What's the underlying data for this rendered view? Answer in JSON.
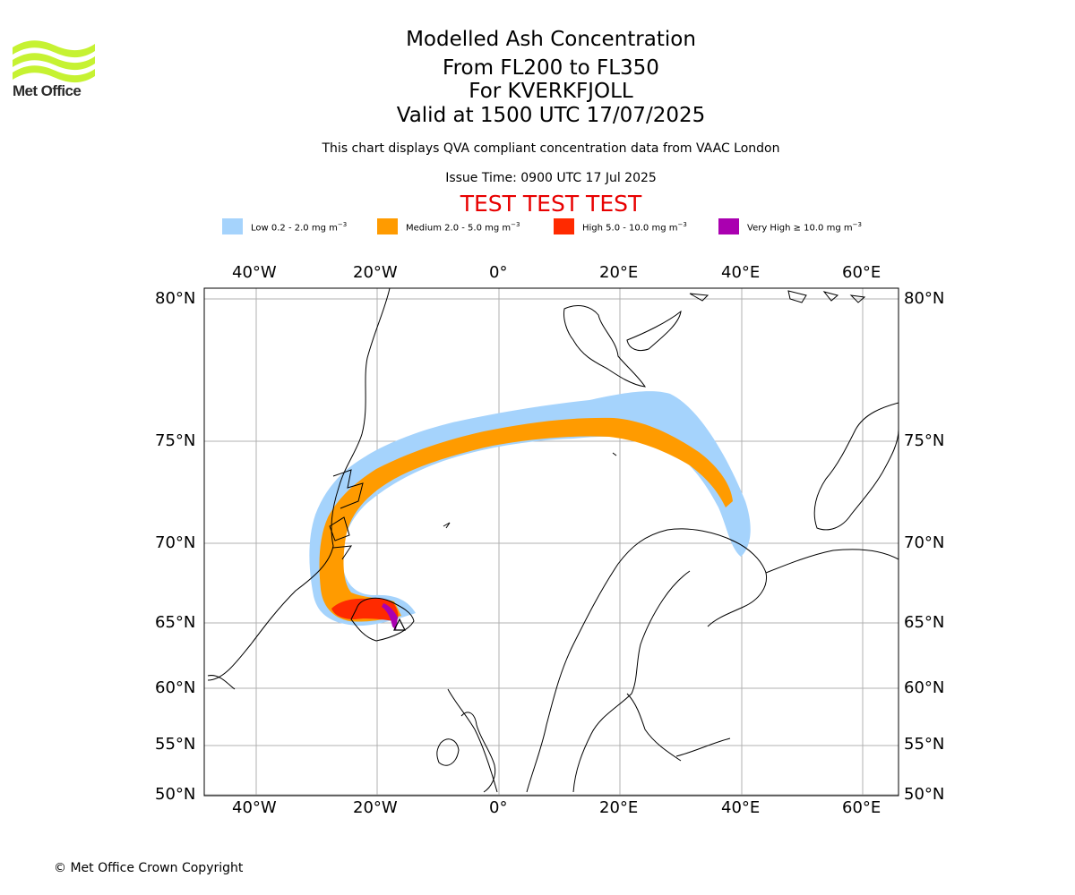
{
  "logo": {
    "icon": "met-office-wave-logo",
    "text": "Met Office",
    "color": "#c6f232"
  },
  "title": {
    "line1": "Modelled Ash Concentration",
    "line2": "From FL200 to FL350",
    "line3": "For KVERKFJOLL",
    "line4": "Valid at 1500 UTC 17/07/2025"
  },
  "subtitle": "This chart displays QVA compliant concentration data from VAAC London",
  "issue_time": "Issue Time: 0900 UTC 17 Jul 2025",
  "test_banner": "TEST TEST TEST",
  "legend": [
    {
      "label": "Low 0.2 - 2.0 mg m",
      "exp": "−3",
      "color": "#a5d3fc"
    },
    {
      "label": "Medium 2.0 - 5.0 mg m",
      "exp": "−3",
      "color": "#ff9b00"
    },
    {
      "label": "High 5.0 - 10.0 mg m",
      "exp": "−3",
      "color": "#ff2a00"
    },
    {
      "label": "Very High  ≥  10.0 mg m",
      "exp": "−3",
      "color": "#aa00b0"
    }
  ],
  "map": {
    "projection": "stereographic",
    "extent_lon": [
      -50,
      65
    ],
    "extent_lat": [
      50,
      81
    ],
    "lon_ticks": [
      "40°W",
      "20°W",
      "0°",
      "20°E",
      "40°E",
      "60°E"
    ],
    "lat_ticks": [
      "80°N",
      "75°N",
      "70°N",
      "65°N",
      "60°N",
      "55°N",
      "50°N"
    ],
    "volcano": "KVERKFJOLL",
    "volcano_marker": "triangle"
  },
  "copyright": "© Met Office Crown Copyright"
}
